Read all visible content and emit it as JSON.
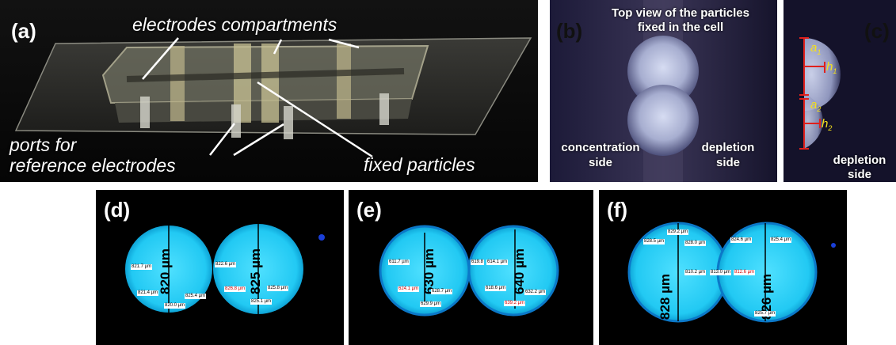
{
  "panel_a": {
    "label": "(a)",
    "annotation_electrodes": "electrodes compartments",
    "annotation_ports_line1": "ports for",
    "annotation_ports_line2": "reference electrodes",
    "annotation_fixed": "fixed particles"
  },
  "panel_b": {
    "label": "(b)",
    "title_line1": "Top view of the particles",
    "title_line2": "fixed in the cell",
    "left_line1": "concentration",
    "left_line2": "side",
    "right_line1": "depletion",
    "right_line2": "side"
  },
  "panel_c": {
    "label": "(c)",
    "a1": "a",
    "a1_sub": "1",
    "h1": "h",
    "h1_sub": "1",
    "a2": "a",
    "a2_sub": "2",
    "h2": "h",
    "h2_sub": "2",
    "side_line1": "depletion",
    "side_line2": "side"
  },
  "panel_d": {
    "label": "(d)",
    "big_left": "820 µm",
    "big_right": "825 µm",
    "m1": "821.7 µm",
    "m2": "821.4 µm",
    "m3": "820.0 µm",
    "m4": "822.6 µm",
    "m5": "826.8 µm",
    "m6": "825.4 µm",
    "m7": "825.8 µm",
    "m8": "825.1 µm"
  },
  "panel_e": {
    "label": "(e)",
    "big_left": "630 µm",
    "big_right": "640 µm",
    "m1": "611.7 µm",
    "m2": "624.1 µm",
    "m3": "629.9 µm",
    "m4": "628.7 µm",
    "m5": "619.8",
    "m6": "614.1 µm",
    "m7": "618.6 µm",
    "m8": "639.2 µm",
    "m9": "632.2 µm"
  },
  "panel_f": {
    "label": "(f)",
    "big_left": "828 µm",
    "big_right": "826 µm",
    "m1": "829.2 µm",
    "m2": "828.5 µm",
    "m3": "828.0 µm",
    "m4": "810.2 µm",
    "m5": "813.0 µm",
    "m6": "812.6 µm",
    "m7": "824.6 µm",
    "m8": "825.4 µm",
    "m9": "825.7 µm"
  },
  "colors": {
    "cyan": "#19c8f0",
    "red_markers": "#e0201c",
    "yellow_labels": "#f5e11c"
  }
}
